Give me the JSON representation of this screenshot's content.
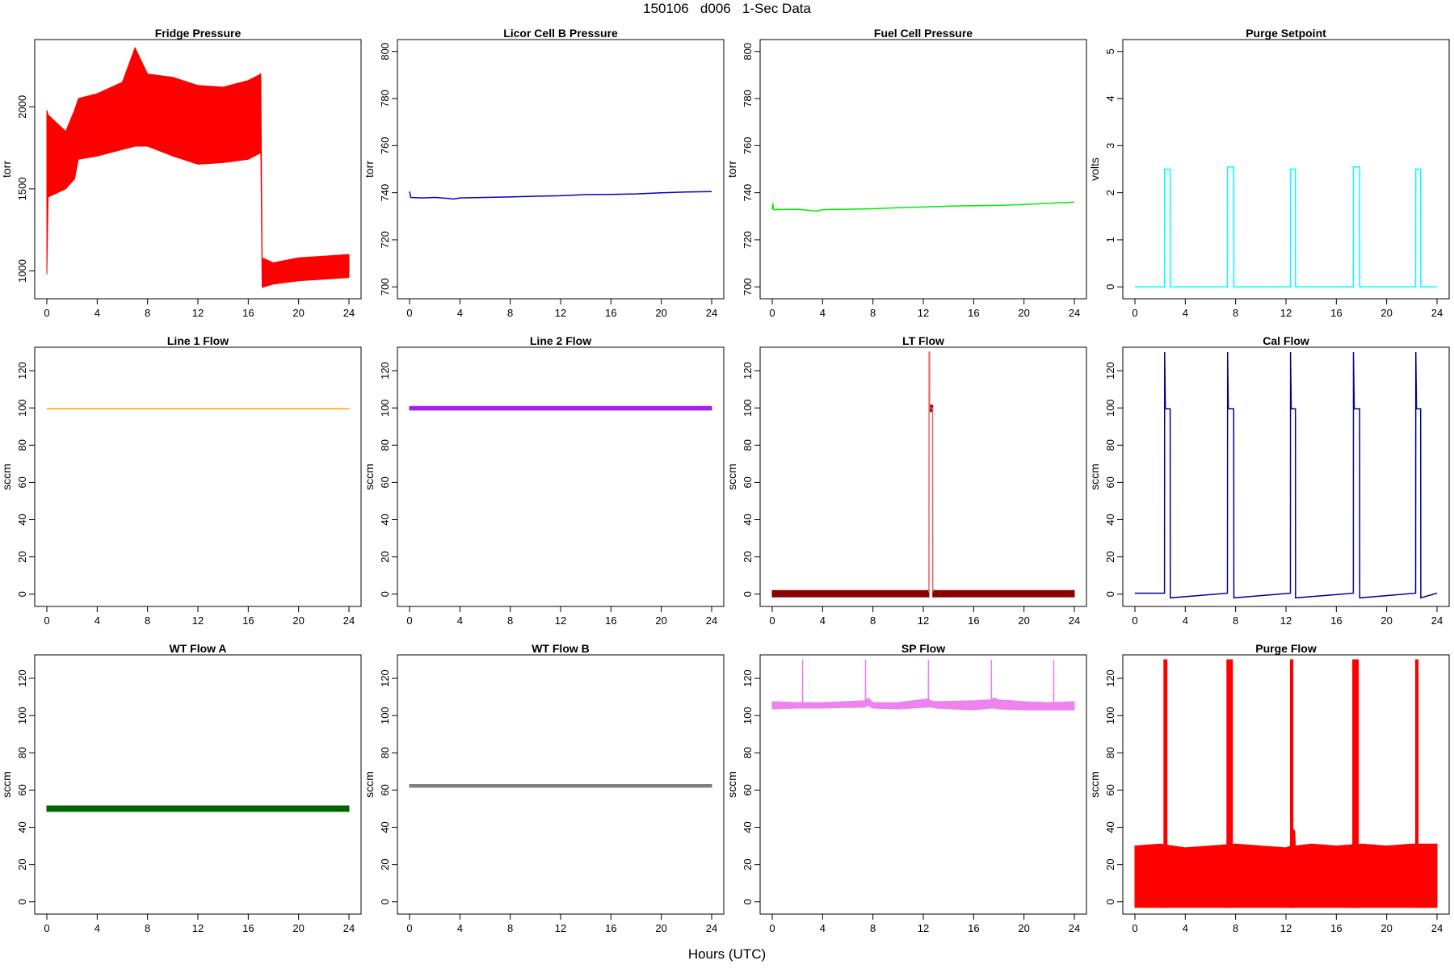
{
  "page": {
    "title": "150106   d006   1-Sec Data",
    "xlabel": "Hours (UTC)"
  },
  "chart_data": [
    {
      "type": "line",
      "title": "Fridge Pressure",
      "ylabel": "torr",
      "xlim": [
        0,
        24
      ],
      "ylim": [
        860,
        2380
      ],
      "yticks": [
        1000,
        1500,
        2000
      ],
      "xticks": [
        0,
        4,
        8,
        12,
        16,
        20,
        24
      ],
      "series": [
        {
          "color": "#ff0000",
          "style": "band",
          "x": [
            0,
            0.1,
            1.5,
            2.2,
            2.5,
            4,
            6,
            7,
            8,
            10,
            12,
            14,
            16,
            16.5,
            17,
            17.1,
            18,
            20,
            22,
            24
          ],
          "y_low": [
            980,
            1450,
            1500,
            1560,
            1680,
            1700,
            1740,
            1760,
            1760,
            1700,
            1650,
            1660,
            1680,
            1700,
            1720,
            900,
            920,
            940,
            950,
            960
          ],
          "y_high": [
            1980,
            1950,
            1850,
            1980,
            2050,
            2080,
            2150,
            2360,
            2200,
            2180,
            2130,
            2120,
            2160,
            2180,
            2200,
            1080,
            1050,
            1080,
            1090,
            1100
          ]
        }
      ]
    },
    {
      "type": "line",
      "title": "Licor Cell B Pressure",
      "ylabel": "torr",
      "xlim": [
        0,
        24
      ],
      "ylim": [
        697,
        803
      ],
      "yticks": [
        700,
        720,
        740,
        760,
        780,
        800
      ],
      "xticks": [
        0,
        4,
        8,
        12,
        16,
        20,
        24
      ],
      "series": [
        {
          "color": "#0000cd",
          "style": "line",
          "x": [
            0,
            0.1,
            1,
            2,
            3,
            3.5,
            4,
            6,
            8,
            10,
            12,
            14,
            16,
            18,
            20,
            22,
            24
          ],
          "y": [
            740.5,
            738,
            737.8,
            738,
            737.6,
            737.3,
            737.8,
            738,
            738.2,
            738.5,
            738.7,
            739.2,
            739.3,
            739.5,
            740,
            740.3,
            740.5
          ]
        }
      ]
    },
    {
      "type": "line",
      "title": "Fuel Cell Pressure",
      "ylabel": "torr",
      "xlim": [
        0,
        24
      ],
      "ylim": [
        697,
        803
      ],
      "yticks": [
        700,
        720,
        740,
        760,
        780,
        800
      ],
      "xticks": [
        0,
        4,
        8,
        12,
        16,
        20,
        24
      ],
      "series": [
        {
          "color": "#00ee00",
          "style": "line",
          "x": [
            0,
            0.05,
            0.1,
            2,
            3.5,
            4,
            6,
            8,
            10,
            12,
            14,
            16,
            18,
            20,
            22,
            24
          ],
          "y": [
            733,
            735.5,
            732.8,
            733,
            732.2,
            732.8,
            733,
            733.2,
            733.6,
            733.9,
            734.3,
            734.5,
            734.6,
            735,
            735.5,
            736
          ]
        }
      ]
    },
    {
      "type": "line",
      "title": "Purge Setpoint",
      "ylabel": "volts",
      "xlim": [
        0,
        24
      ],
      "ylim": [
        -0.15,
        5.15
      ],
      "yticks": [
        0,
        1,
        2,
        3,
        4,
        5
      ],
      "xticks": [
        0,
        4,
        8,
        12,
        16,
        20,
        24
      ],
      "series": [
        {
          "color": "#00ffff",
          "style": "line",
          "x": [
            0,
            2.35,
            2.36,
            2.8,
            2.81,
            7.35,
            7.36,
            7.85,
            7.86,
            12.35,
            12.36,
            12.75,
            12.76,
            17.35,
            17.36,
            17.85,
            17.86,
            22.3,
            22.31,
            22.7,
            22.71,
            24
          ],
          "y": [
            0,
            0,
            2.5,
            2.5,
            0,
            0,
            2.55,
            2.55,
            0,
            0,
            2.5,
            2.5,
            0,
            0,
            2.55,
            2.55,
            0,
            0,
            2.5,
            2.5,
            0,
            0
          ]
        }
      ]
    },
    {
      "type": "line",
      "title": "Line 1 Flow",
      "ylabel": "sccm",
      "xlim": [
        0,
        24
      ],
      "ylim": [
        -4,
        130
      ],
      "yticks": [
        0,
        20,
        40,
        60,
        80,
        100,
        120
      ],
      "xticks": [
        0,
        4,
        8,
        12,
        16,
        20,
        24
      ],
      "series": [
        {
          "color": "#ffa500",
          "style": "line",
          "x": [
            0,
            24
          ],
          "y": [
            99.6,
            99.6
          ]
        }
      ]
    },
    {
      "type": "line",
      "title": "Line 2 Flow",
      "ylabel": "sccm",
      "xlim": [
        0,
        24
      ],
      "ylim": [
        -4,
        130
      ],
      "yticks": [
        0,
        20,
        40,
        60,
        80,
        100,
        120
      ],
      "xticks": [
        0,
        4,
        8,
        12,
        16,
        20,
        24
      ],
      "series": [
        {
          "color": "#a020f0",
          "style": "band",
          "x": [
            0,
            24
          ],
          "y_low": [
            98.8,
            98.8
          ],
          "y_high": [
            100.8,
            100.8
          ]
        }
      ]
    },
    {
      "type": "line",
      "title": "LT Flow",
      "ylabel": "sccm",
      "xlim": [
        0,
        24
      ],
      "ylim": [
        -4,
        130
      ],
      "yticks": [
        0,
        20,
        40,
        60,
        80,
        100,
        120
      ],
      "xticks": [
        0,
        4,
        8,
        12,
        16,
        20,
        24
      ],
      "series": [
        {
          "color": "#8b0000",
          "style": "band",
          "x": [
            0,
            12.45
          ],
          "y_low": [
            -1.5,
            -1.5
          ],
          "y_high": [
            2,
            2
          ]
        },
        {
          "color": "#8b0000",
          "style": "band",
          "x": [
            12.75,
            24
          ],
          "y_low": [
            -1.5,
            -1.5
          ],
          "y_high": [
            2,
            2
          ]
        },
        {
          "color": "#8b0000",
          "style": "band",
          "x": [
            12.55,
            12.75
          ],
          "y_low": [
            98,
            98
          ],
          "y_high": [
            101.5,
            101.5
          ]
        },
        {
          "color": "#e06666",
          "style": "line",
          "x": [
            12.45,
            12.46,
            12.5,
            12.51,
            12.74,
            12.75
          ],
          "y": [
            1,
            130,
            130,
            100,
            100,
            1
          ]
        }
      ]
    },
    {
      "type": "line",
      "title": "Cal Flow",
      "ylabel": "sccm",
      "xlim": [
        0,
        24
      ],
      "ylim": [
        -4,
        130
      ],
      "yticks": [
        0,
        20,
        40,
        60,
        80,
        100,
        120
      ],
      "xticks": [
        0,
        4,
        8,
        12,
        16,
        20,
        24
      ],
      "series": [
        {
          "color": "#00008b",
          "style": "line",
          "x": [
            0,
            2.35,
            2.36,
            2.42,
            2.43,
            2.8,
            2.81,
            7.35,
            7.36,
            7.42,
            7.43,
            7.85,
            7.86,
            12.35,
            12.36,
            12.42,
            12.43,
            12.75,
            12.76,
            17.35,
            17.36,
            17.42,
            17.43,
            17.85,
            17.86,
            22.3,
            22.31,
            22.37,
            22.38,
            22.7,
            22.71,
            24
          ],
          "y": [
            0.5,
            0.5,
            130,
            100,
            99.5,
            99.5,
            -2,
            0.5,
            130,
            100,
            99.5,
            99.5,
            -2,
            0.5,
            130,
            100,
            99.5,
            99.5,
            -2,
            0.5,
            130,
            100,
            99.5,
            99.5,
            -2,
            0.5,
            130,
            100,
            99.5,
            99.5,
            -2,
            0.5
          ]
        }
      ]
    },
    {
      "type": "line",
      "title": "WT Flow A",
      "ylabel": "sccm",
      "xlim": [
        0,
        24
      ],
      "ylim": [
        -4,
        130
      ],
      "yticks": [
        0,
        20,
        40,
        60,
        80,
        100,
        120
      ],
      "xticks": [
        0,
        4,
        8,
        12,
        16,
        20,
        24
      ],
      "series": [
        {
          "color": "#006400",
          "style": "band",
          "x": [
            0,
            24
          ],
          "y_low": [
            48.5,
            48.5
          ],
          "y_high": [
            51.5,
            51.5
          ]
        }
      ]
    },
    {
      "type": "line",
      "title": "WT Flow B",
      "ylabel": "sccm",
      "xlim": [
        0,
        24
      ],
      "ylim": [
        -4,
        130
      ],
      "yticks": [
        0,
        20,
        40,
        60,
        80,
        100,
        120
      ],
      "xticks": [
        0,
        4,
        8,
        12,
        16,
        20,
        24
      ],
      "series": [
        {
          "color": "#7f7f7f",
          "style": "band",
          "x": [
            0,
            24
          ],
          "y_low": [
            61.5,
            61.5
          ],
          "y_high": [
            63,
            63
          ]
        }
      ]
    },
    {
      "type": "line",
      "title": "SP Flow",
      "ylabel": "sccm",
      "xlim": [
        0,
        24
      ],
      "ylim": [
        -4,
        130
      ],
      "yticks": [
        0,
        20,
        40,
        60,
        80,
        100,
        120
      ],
      "xticks": [
        0,
        4,
        8,
        12,
        16,
        20,
        24
      ],
      "series": [
        {
          "color": "#ee82ee",
          "style": "band",
          "x": [
            0,
            2,
            4,
            7.4,
            7.6,
            8,
            10,
            12.4,
            12.6,
            13,
            16,
            17.4,
            17.6,
            18,
            20,
            22,
            24
          ],
          "y_low": [
            103.5,
            104,
            104,
            104.5,
            105.5,
            104,
            103.5,
            104.5,
            104.5,
            104,
            103,
            104,
            104,
            103.5,
            103,
            103,
            103
          ],
          "y_high": [
            107.5,
            107,
            107,
            108,
            109.5,
            107,
            107,
            109,
            108,
            107.5,
            108,
            108.5,
            109.5,
            108.5,
            107.5,
            107,
            107.5
          ]
        },
        {
          "color": "#ee82ee",
          "style": "line",
          "x": [
            2.4,
            2.41,
            2.42,
            7.4,
            7.41,
            7.42,
            12.4,
            12.41,
            12.42,
            17.4,
            17.41,
            17.42,
            22.35,
            22.36,
            22.37
          ],
          "y": [
            106,
            130,
            106,
            106,
            130,
            106,
            106,
            130,
            106,
            106,
            130,
            106,
            106,
            130,
            106
          ]
        }
      ]
    },
    {
      "type": "line",
      "title": "Purge Flow",
      "ylabel": "sccm",
      "xlim": [
        0,
        24
      ],
      "ylim": [
        -4,
        130
      ],
      "yticks": [
        0,
        20,
        40,
        60,
        80,
        100,
        120
      ],
      "xticks": [
        0,
        4,
        8,
        12,
        16,
        20,
        24
      ],
      "series": [
        {
          "color": "#ff0000",
          "style": "band",
          "x": [
            0,
            2,
            4,
            6,
            8,
            10,
            12,
            12.4,
            12.45,
            12.7,
            12.75,
            14,
            16,
            18,
            20,
            22,
            24
          ],
          "y_low": [
            -3,
            -3,
            -3,
            -3,
            -3,
            -3,
            -3,
            -3,
            -3,
            -3,
            -3,
            -3,
            -3,
            -3,
            -3,
            -3,
            -3
          ],
          "y_high": [
            30,
            31,
            29,
            30,
            31,
            30,
            29,
            30,
            40,
            38,
            30,
            31,
            30,
            31,
            30,
            31,
            31
          ]
        },
        {
          "color": "#ff0000",
          "style": "band",
          "x": [
            2.3,
            2.55
          ],
          "y_low": [
            -3,
            -3
          ],
          "y_high": [
            130,
            130
          ]
        },
        {
          "color": "#ff0000",
          "style": "band",
          "x": [
            7.3,
            7.75
          ],
          "y_low": [
            -3,
            -3
          ],
          "y_high": [
            130,
            130
          ]
        },
        {
          "color": "#ff0000",
          "style": "band",
          "x": [
            12.35,
            12.55
          ],
          "y_low": [
            -3,
            -3
          ],
          "y_high": [
            130,
            130
          ]
        },
        {
          "color": "#ff0000",
          "style": "band",
          "x": [
            17.3,
            17.75
          ],
          "y_low": [
            -3,
            -3
          ],
          "y_high": [
            130,
            130
          ]
        },
        {
          "color": "#ff0000",
          "style": "band",
          "x": [
            22.3,
            22.5
          ],
          "y_low": [
            -3,
            -3
          ],
          "y_high": [
            130,
            130
          ]
        }
      ]
    }
  ]
}
